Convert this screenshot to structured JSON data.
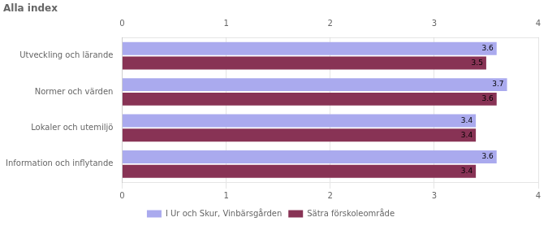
{
  "chart_data": {
    "type": "bar",
    "orientation": "horizontal",
    "title": "Alla index",
    "categories": [
      "Information och inflytande",
      "Lokaler och utemiljö",
      "Normer och värden",
      "Utveckling och lärande"
    ],
    "series": [
      {
        "name": "I Ur och Skur, Vinbärsgården",
        "color": "#aaaaee",
        "values": [
          3.6,
          3.4,
          3.7,
          3.6
        ]
      },
      {
        "name": "Sätra förskoleområde",
        "color": "#883355",
        "values": [
          3.4,
          3.4,
          3.6,
          3.5
        ]
      }
    ],
    "xlim": [
      0,
      4
    ],
    "xticks": [
      0,
      1,
      2,
      3,
      4
    ],
    "grid": true,
    "legend": "bottom",
    "data_labels": true
  }
}
